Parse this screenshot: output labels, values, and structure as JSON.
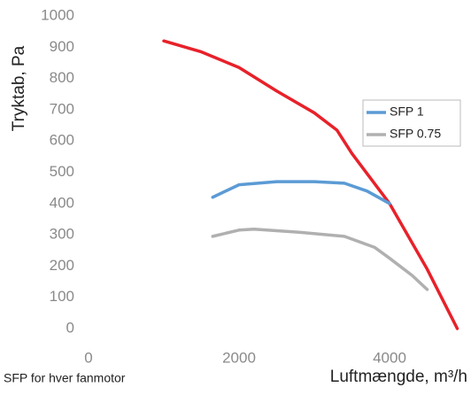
{
  "chart_data": {
    "type": "line",
    "y_label": "Tryktab, Pa",
    "x_label": "Luftmængde, m³/h",
    "note": "SFP for hver fanmotor",
    "xlim": [
      0,
      5000
    ],
    "xticks": [
      0,
      2000,
      4000
    ],
    "ylim": [
      0,
      1000
    ],
    "yticks": [
      0,
      100,
      200,
      300,
      400,
      500,
      600,
      700,
      800,
      900,
      1000
    ],
    "grid": false,
    "legend": "upper right",
    "series": [
      {
        "color": "#e8212a",
        "x": [
          1000,
          1500,
          2000,
          2500,
          3000,
          3300,
          3500,
          4000,
          4500,
          4900
        ],
        "values": [
          920,
          885,
          835,
          760,
          690,
          635,
          560,
          400,
          190,
          0
        ]
      },
      {
        "name": "SFP 1",
        "color": "#5b9bd5",
        "x": [
          1650,
          2000,
          2500,
          3000,
          3400,
          3700,
          4000
        ],
        "values": [
          420,
          460,
          470,
          470,
          465,
          440,
          400
        ]
      },
      {
        "name": "SFP 0.75",
        "color": "#b0b0b0",
        "x": [
          1650,
          2000,
          2200,
          2800,
          3400,
          3800,
          4000,
          4300,
          4500
        ],
        "values": [
          295,
          315,
          318,
          308,
          295,
          260,
          225,
          170,
          125
        ]
      }
    ]
  }
}
